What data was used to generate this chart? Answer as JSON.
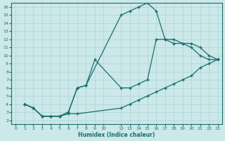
{
  "xlabel": "Humidex (Indice chaleur)",
  "ylabel": "",
  "bg_color": "#cce8e8",
  "grid_color": "#b0d8d8",
  "line_color": "#1a6e6e",
  "xlim": [
    -0.5,
    23.5
  ],
  "ylim": [
    1.5,
    16.5
  ],
  "xticks": [
    0,
    1,
    2,
    3,
    4,
    5,
    6,
    7,
    8,
    9,
    10,
    12,
    13,
    14,
    15,
    16,
    17,
    18,
    19,
    20,
    21,
    22,
    23
  ],
  "yticks": [
    2,
    3,
    4,
    5,
    6,
    7,
    8,
    9,
    10,
    11,
    12,
    13,
    14,
    15,
    16
  ],
  "line_upper_x": [
    1,
    2,
    3,
    4,
    5,
    6,
    7,
    8,
    12,
    13,
    14,
    15,
    16,
    17,
    18,
    19,
    20,
    21,
    22,
    23
  ],
  "line_upper_y": [
    4,
    3.5,
    2.5,
    2.5,
    2.5,
    3,
    6,
    6.3,
    15.0,
    15.5,
    16.0,
    16.5,
    15.5,
    12,
    12,
    11.5,
    11.5,
    11,
    10,
    9.5
  ],
  "line_middle_x": [
    1,
    2,
    3,
    4,
    5,
    6,
    7,
    8,
    9,
    12,
    13,
    14,
    15,
    16,
    17,
    18,
    19,
    20,
    21,
    22,
    23
  ],
  "line_middle_y": [
    4,
    3.5,
    2.5,
    2.5,
    2.5,
    3,
    6,
    6.3,
    9.5,
    6,
    6,
    6.5,
    7,
    12,
    12,
    11.5,
    11.5,
    11,
    10,
    9.5,
    9.5
  ],
  "line_lower_x": [
    1,
    2,
    3,
    4,
    5,
    6,
    7,
    12,
    13,
    14,
    15,
    16,
    17,
    18,
    19,
    20,
    21,
    22,
    23
  ],
  "line_lower_y": [
    4,
    3.5,
    2.5,
    2.5,
    2.5,
    2.8,
    2.8,
    3.5,
    4,
    4.5,
    5,
    5.5,
    6,
    6.5,
    7,
    7.5,
    8.5,
    9,
    9.5
  ]
}
